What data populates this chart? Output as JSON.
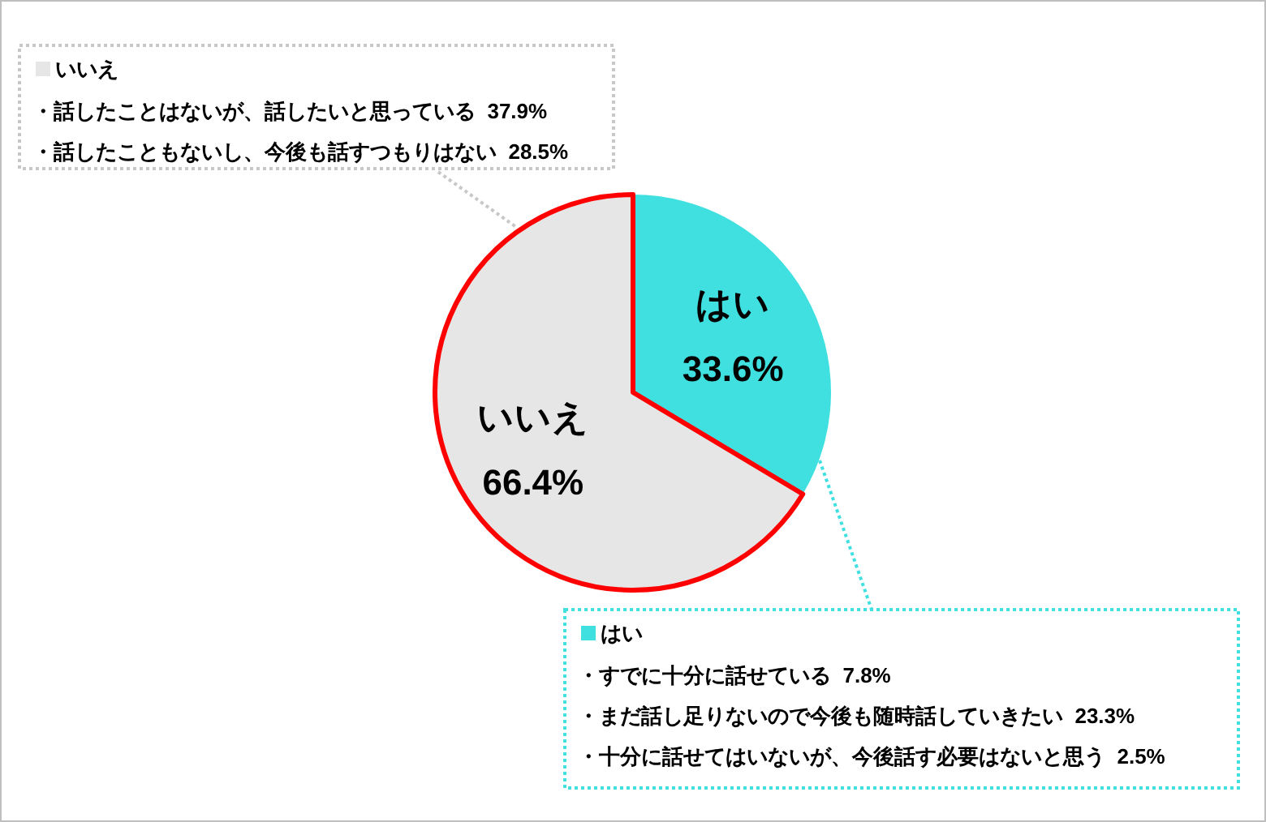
{
  "chart_data": {
    "type": "pie",
    "categories": [
      "はい",
      "いいえ"
    ],
    "values": [
      33.6,
      66.4
    ],
    "colors": [
      "#40e0e0",
      "#e6e6e6"
    ],
    "value_labels": [
      "33.6%",
      "66.4%"
    ],
    "legend": "top left",
    "annotations": [
      "・話したことはないが、話したいと思っている  37.9%",
      "・話したこともないし、今後も話すつもりはない  28.5%",
      "・すでに十分に話せている  7.8%",
      "・まだ話し足りないので今後も随時話していきたい  23.3%",
      "・十分に話せてはいないが、今後話す必要はないと思う  2.5%"
    ]
  }
}
